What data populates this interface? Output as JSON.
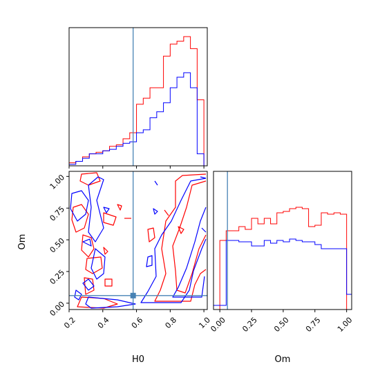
{
  "chart_data": {
    "type": "corner",
    "parameters": [
      "H0",
      "Om"
    ],
    "truth": {
      "H0": 0.58,
      "Om": 0.06
    },
    "colors": {
      "series_a": "#ff0000",
      "series_b": "#0000ff",
      "truth": "#4682b4"
    },
    "ticks": {
      "H0": [
        "0.2",
        "0.4",
        "0.6",
        "0.8",
        "1.0"
      ],
      "Om": [
        "0.00",
        "0.25",
        "0.50",
        "0.75",
        "1.00"
      ]
    },
    "xlim": {
      "H0": [
        0.2,
        1.02
      ],
      "Om": [
        -0.05,
        1.04
      ]
    },
    "hist_H0": {
      "bin_edges": [
        0.2,
        0.24,
        0.28,
        0.32,
        0.36,
        0.4,
        0.44,
        0.48,
        0.52,
        0.56,
        0.6,
        0.64,
        0.68,
        0.72,
        0.76,
        0.8,
        0.84,
        0.88,
        0.92,
        0.96,
        1.0
      ],
      "series": [
        {
          "values": [
            2,
            3,
            6,
            8,
            9,
            10,
            13,
            14,
            18,
            22,
            41,
            45,
            52,
            52,
            73,
            81,
            83,
            86,
            78,
            44
          ]
        },
        {
          "values": [
            1,
            3,
            5,
            8,
            8,
            10,
            11,
            13,
            15,
            16,
            22,
            24,
            32,
            36,
            42,
            52,
            59,
            62,
            52,
            8
          ]
        }
      ]
    },
    "hist_Om": {
      "bin_edges": [
        -0.05,
        0.0,
        0.05,
        0.1,
        0.15,
        0.2,
        0.25,
        0.3,
        0.35,
        0.4,
        0.45,
        0.5,
        0.55,
        0.6,
        0.65,
        0.7,
        0.75,
        0.8,
        0.85,
        0.9,
        0.95,
        1.0,
        1.04
      ],
      "series": [
        {
          "values": [
            0,
            50,
            57,
            57,
            60,
            58,
            66,
            62,
            66,
            62,
            70,
            71,
            73,
            74,
            73,
            60,
            61,
            70,
            69,
            70,
            69,
            0
          ]
        },
        {
          "values": [
            3,
            3,
            50,
            50,
            49,
            49,
            46,
            46,
            50,
            48,
            50,
            49,
            51,
            50,
            49,
            49,
            47,
            44,
            44,
            44,
            44,
            11
          ]
        }
      ]
    }
  }
}
